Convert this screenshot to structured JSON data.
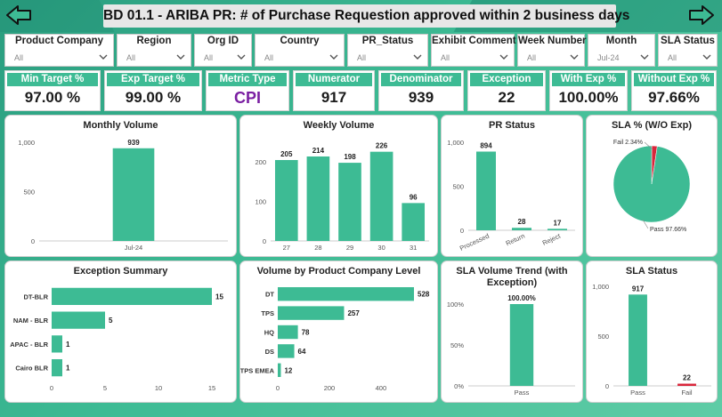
{
  "header": {
    "title": "BD 01.1 - ARIBA PR: # of Purchase Requestion approved within 2 business days"
  },
  "slicers": [
    {
      "label": "Product Company",
      "value": "All"
    },
    {
      "label": "Region",
      "value": "All"
    },
    {
      "label": "Org ID",
      "value": "All"
    },
    {
      "label": "Country",
      "value": "All"
    },
    {
      "label": "PR_Status",
      "value": "All"
    },
    {
      "label": "Exhibit Comment",
      "value": "All"
    },
    {
      "label": "Week Number",
      "value": "All"
    },
    {
      "label": "Month",
      "value": "Jul-24"
    },
    {
      "label": "SLA Status",
      "value": "All"
    }
  ],
  "kpis": [
    {
      "label": "Min Target %",
      "value": "97.00 %"
    },
    {
      "label": "Exp Target %",
      "value": "99.00 %"
    },
    {
      "label": "Metric Type",
      "value": "CPI"
    },
    {
      "label": "Numerator",
      "value": "917"
    },
    {
      "label": "Denominator",
      "value": "939"
    },
    {
      "label": "Exception",
      "value": "22"
    },
    {
      "label": "With Exp %",
      "value": "100.00%"
    },
    {
      "label": "Without Exp %",
      "value": "97.66%"
    }
  ],
  "colors": {
    "bar": "#3dbb94",
    "fail": "#d9263b",
    "axis": "#555555"
  },
  "chart_data": [
    {
      "id": "monthly",
      "type": "bar",
      "title": "Monthly Volume",
      "categories": [
        "Jul-24"
      ],
      "values": [
        939
      ],
      "labels": [
        "939"
      ],
      "yticks": [
        0,
        500,
        1000
      ],
      "ytick_labels": [
        "0",
        "500",
        "1,000"
      ],
      "ylim": [
        0,
        1000
      ]
    },
    {
      "id": "weekly",
      "type": "bar",
      "title": "Weekly Volume",
      "categories": [
        "27",
        "28",
        "29",
        "30",
        "31"
      ],
      "values": [
        205,
        214,
        198,
        226,
        96
      ],
      "labels": [
        "205",
        "214",
        "198",
        "226",
        "96"
      ],
      "yticks": [
        0,
        100,
        200
      ],
      "ytick_labels": [
        "0",
        "100",
        "200"
      ],
      "ylim": [
        0,
        250
      ]
    },
    {
      "id": "prstatus",
      "type": "bar",
      "title": "PR Status",
      "categories": [
        "Processed",
        "Return",
        "Reject"
      ],
      "values": [
        894,
        28,
        17
      ],
      "labels": [
        "894",
        "28",
        "17"
      ],
      "yticks": [
        0,
        500,
        1000
      ],
      "ytick_labels": [
        "0",
        "500",
        "1,000"
      ],
      "ylim": [
        0,
        1000
      ]
    },
    {
      "id": "slapie",
      "type": "pie",
      "title": "SLA % (W/O Exp)",
      "categories": [
        "Fail",
        "Pass"
      ],
      "values": [
        2.34,
        97.66
      ],
      "labels": [
        "Fail 2.34%",
        "Pass 97.66%"
      ]
    },
    {
      "id": "exception",
      "type": "bar",
      "orientation": "horizontal",
      "title": "Exception Summary",
      "categories": [
        "DT-BLR",
        "NAM - BLR",
        "APAC - BLR",
        "Cairo BLR"
      ],
      "values": [
        15,
        5,
        1,
        1
      ],
      "labels": [
        "15",
        "5",
        "1",
        "1"
      ],
      "xticks": [
        0,
        5,
        10,
        15
      ],
      "xtick_labels": [
        "0",
        "5",
        "10",
        "15"
      ],
      "xlim": [
        0,
        15
      ]
    },
    {
      "id": "prodco",
      "type": "bar",
      "orientation": "horizontal",
      "title": "Volume by Product Company Level",
      "categories": [
        "DT",
        "TPS",
        "HQ",
        "DS",
        "TPS EMEA"
      ],
      "values": [
        528,
        257,
        78,
        64,
        12
      ],
      "labels": [
        "528",
        "257",
        "78",
        "64",
        "12"
      ],
      "xticks": [
        0,
        200,
        400
      ],
      "xtick_labels": [
        "0",
        "200",
        "400"
      ],
      "xlim": [
        0,
        528
      ]
    },
    {
      "id": "slatrend",
      "type": "bar",
      "title": "SLA Volume Trend (with Exception)",
      "categories": [
        "Pass"
      ],
      "values": [
        100
      ],
      "labels": [
        "100.00%"
      ],
      "yticks": [
        0,
        50,
        100
      ],
      "ytick_labels": [
        "0%",
        "50%",
        "100%"
      ],
      "ylim": [
        0,
        100
      ]
    },
    {
      "id": "slastatus",
      "type": "bar",
      "title": "SLA Status",
      "categories": [
        "Pass",
        "Fail"
      ],
      "values": [
        917,
        22
      ],
      "labels": [
        "917",
        "22"
      ],
      "yticks": [
        0,
        500,
        1000
      ],
      "ytick_labels": [
        "0",
        "500",
        "1,000"
      ],
      "ylim": [
        0,
        1000
      ]
    }
  ]
}
